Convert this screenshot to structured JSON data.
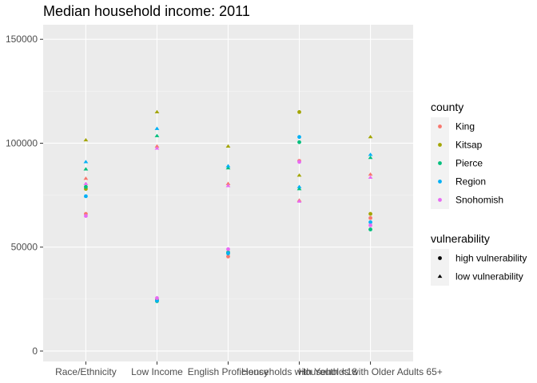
{
  "chart_data": {
    "type": "scatter",
    "title": "Median household income: 2011",
    "xlabel": "",
    "ylabel": "",
    "categories": [
      "Race/Ethnicity",
      "Low Income",
      "English Proficiency",
      "Households with Youth <18",
      "Households with Older Adults 65+"
    ],
    "ylim": [
      -5000,
      157000
    ],
    "yticks": [
      0,
      50000,
      100000,
      150000
    ],
    "grid": true,
    "legend_position": "right",
    "color_legend": {
      "title": "county",
      "entries": [
        {
          "name": "King",
          "color": "#F8766D"
        },
        {
          "name": "Kitsap",
          "color": "#A3A500"
        },
        {
          "name": "Pierce",
          "color": "#00BF7D"
        },
        {
          "name": "Region",
          "color": "#00B0F6"
        },
        {
          "name": "Snohomish",
          "color": "#E76BF3"
        }
      ]
    },
    "shape_legend": {
      "title": "vulnerability",
      "entries": [
        {
          "name": "high vulnerability",
          "shape": "circle"
        },
        {
          "name": "low vulnerability",
          "shape": "triangle"
        }
      ]
    },
    "points": [
      {
        "category": "Race/Ethnicity",
        "county": "King",
        "vulnerability": "high vulnerability",
        "value": 66000
      },
      {
        "category": "Race/Ethnicity",
        "county": "Kitsap",
        "vulnerability": "high vulnerability",
        "value": 78000
      },
      {
        "category": "Race/Ethnicity",
        "county": "Pierce",
        "vulnerability": "high vulnerability",
        "value": 79000
      },
      {
        "category": "Race/Ethnicity",
        "county": "Region",
        "vulnerability": "high vulnerability",
        "value": 74500
      },
      {
        "category": "Race/Ethnicity",
        "county": "Snohomish",
        "vulnerability": "high vulnerability",
        "value": 65000
      },
      {
        "category": "Race/Ethnicity",
        "county": "King",
        "vulnerability": "low vulnerability",
        "value": 83000
      },
      {
        "category": "Race/Ethnicity",
        "county": "Kitsap",
        "vulnerability": "low vulnerability",
        "value": 101500
      },
      {
        "category": "Race/Ethnicity",
        "county": "Pierce",
        "vulnerability": "low vulnerability",
        "value": 87500
      },
      {
        "category": "Race/Ethnicity",
        "county": "Region",
        "vulnerability": "low vulnerability",
        "value": 91000
      },
      {
        "category": "Race/Ethnicity",
        "county": "Snohomish",
        "vulnerability": "low vulnerability",
        "value": 80500
      },
      {
        "category": "Low Income",
        "county": "King",
        "vulnerability": "high vulnerability",
        "value": 25000
      },
      {
        "category": "Low Income",
        "county": "Kitsap",
        "vulnerability": "high vulnerability",
        "value": 24500
      },
      {
        "category": "Low Income",
        "county": "Pierce",
        "vulnerability": "high vulnerability",
        "value": 24000
      },
      {
        "category": "Low Income",
        "county": "Region",
        "vulnerability": "high vulnerability",
        "value": 24300
      },
      {
        "category": "Low Income",
        "county": "Snohomish",
        "vulnerability": "high vulnerability",
        "value": 25500
      },
      {
        "category": "Low Income",
        "county": "King",
        "vulnerability": "low vulnerability",
        "value": 98500
      },
      {
        "category": "Low Income",
        "county": "Kitsap",
        "vulnerability": "low vulnerability",
        "value": 115000
      },
      {
        "category": "Low Income",
        "county": "Pierce",
        "vulnerability": "low vulnerability",
        "value": 103500
      },
      {
        "category": "Low Income",
        "county": "Region",
        "vulnerability": "low vulnerability",
        "value": 107000
      },
      {
        "category": "Low Income",
        "county": "Snohomish",
        "vulnerability": "low vulnerability",
        "value": 97500
      },
      {
        "category": "English Proficiency",
        "county": "King",
        "vulnerability": "high vulnerability",
        "value": 45500
      },
      {
        "category": "English Proficiency",
        "county": "Kitsap",
        "vulnerability": "high vulnerability",
        "value": 47000
      },
      {
        "category": "English Proficiency",
        "county": "Pierce",
        "vulnerability": "high vulnerability",
        "value": 47500
      },
      {
        "category": "English Proficiency",
        "county": "Region",
        "vulnerability": "high vulnerability",
        "value": 47000
      },
      {
        "category": "English Proficiency",
        "county": "Snohomish",
        "vulnerability": "high vulnerability",
        "value": 49000
      },
      {
        "category": "English Proficiency",
        "county": "King",
        "vulnerability": "low vulnerability",
        "value": 80500
      },
      {
        "category": "English Proficiency",
        "county": "Kitsap",
        "vulnerability": "low vulnerability",
        "value": 98500
      },
      {
        "category": "English Proficiency",
        "county": "Pierce",
        "vulnerability": "low vulnerability",
        "value": 88000
      },
      {
        "category": "English Proficiency",
        "county": "Region",
        "vulnerability": "low vulnerability",
        "value": 89000
      },
      {
        "category": "English Proficiency",
        "county": "Snohomish",
        "vulnerability": "low vulnerability",
        "value": 79500
      },
      {
        "category": "Households with Youth <18",
        "county": "King",
        "vulnerability": "high vulnerability",
        "value": 91500
      },
      {
        "category": "Households with Youth <18",
        "county": "Kitsap",
        "vulnerability": "high vulnerability",
        "value": 115000
      },
      {
        "category": "Households with Youth <18",
        "county": "Pierce",
        "vulnerability": "high vulnerability",
        "value": 100500
      },
      {
        "category": "Households with Youth <18",
        "county": "Region",
        "vulnerability": "high vulnerability",
        "value": 103000
      },
      {
        "category": "Households with Youth <18",
        "county": "Snohomish",
        "vulnerability": "high vulnerability",
        "value": 91000
      },
      {
        "category": "Households with Youth <18",
        "county": "King",
        "vulnerability": "low vulnerability",
        "value": 72500
      },
      {
        "category": "Households with Youth <18",
        "county": "Kitsap",
        "vulnerability": "low vulnerability",
        "value": 84500
      },
      {
        "category": "Households with Youth <18",
        "county": "Pierce",
        "vulnerability": "low vulnerability",
        "value": 78000
      },
      {
        "category": "Households with Youth <18",
        "county": "Region",
        "vulnerability": "low vulnerability",
        "value": 79000
      },
      {
        "category": "Households with Youth <18",
        "county": "Snohomish",
        "vulnerability": "low vulnerability",
        "value": 72000
      },
      {
        "category": "Households with Older Adults 65+",
        "county": "King",
        "vulnerability": "high vulnerability",
        "value": 64000
      },
      {
        "category": "Households with Older Adults 65+",
        "county": "Kitsap",
        "vulnerability": "high vulnerability",
        "value": 66000
      },
      {
        "category": "Households with Older Adults 65+",
        "county": "Pierce",
        "vulnerability": "high vulnerability",
        "value": 58500
      },
      {
        "category": "Households with Older Adults 65+",
        "county": "Region",
        "vulnerability": "high vulnerability",
        "value": 62000
      },
      {
        "category": "Households with Older Adults 65+",
        "county": "Snohomish",
        "vulnerability": "high vulnerability",
        "value": 60500
      },
      {
        "category": "Households with Older Adults 65+",
        "county": "King",
        "vulnerability": "low vulnerability",
        "value": 85000
      },
      {
        "category": "Households with Older Adults 65+",
        "county": "Kitsap",
        "vulnerability": "low vulnerability",
        "value": 103000
      },
      {
        "category": "Households with Older Adults 65+",
        "county": "Pierce",
        "vulnerability": "low vulnerability",
        "value": 93000
      },
      {
        "category": "Households with Older Adults 65+",
        "county": "Region",
        "vulnerability": "low vulnerability",
        "value": 94500
      },
      {
        "category": "Households with Older Adults 65+",
        "county": "Snohomish",
        "vulnerability": "low vulnerability",
        "value": 83500
      }
    ]
  }
}
